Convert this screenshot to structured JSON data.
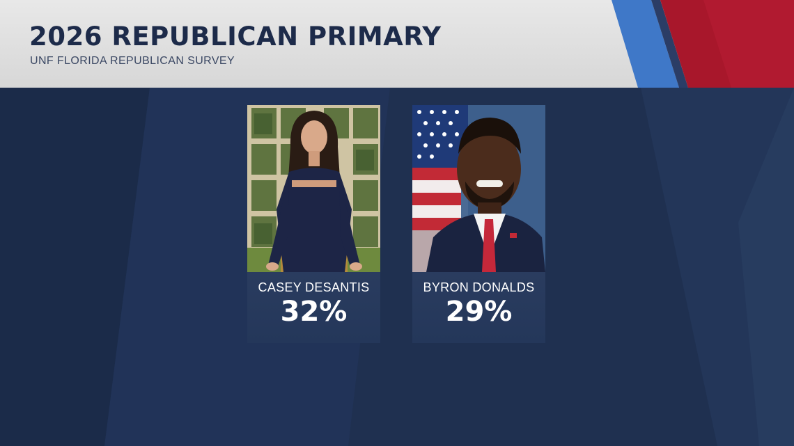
{
  "header": {
    "title": "2026 REPUBLICAN PRIMARY",
    "subtitle": "UNF FLORIDA REPUBLICAN SURVEY"
  },
  "candidates": [
    {
      "name": "CASEY DESANTIS",
      "percent_label": "32%",
      "percent": 32,
      "photo": "candidate-portrait-woman-navy-dress"
    },
    {
      "name": "BYRON DONALDS",
      "percent_label": "29%",
      "percent": 29,
      "photo": "candidate-portrait-man-suit-flag"
    }
  ],
  "colors": {
    "background_navy": "#1f3050",
    "header_gray": "#dcdcdc",
    "title_navy": "#1d2b4a",
    "accent_blue": "#3f78c8",
    "accent_red": "#b01a2e",
    "card_navy": "#27395c"
  }
}
